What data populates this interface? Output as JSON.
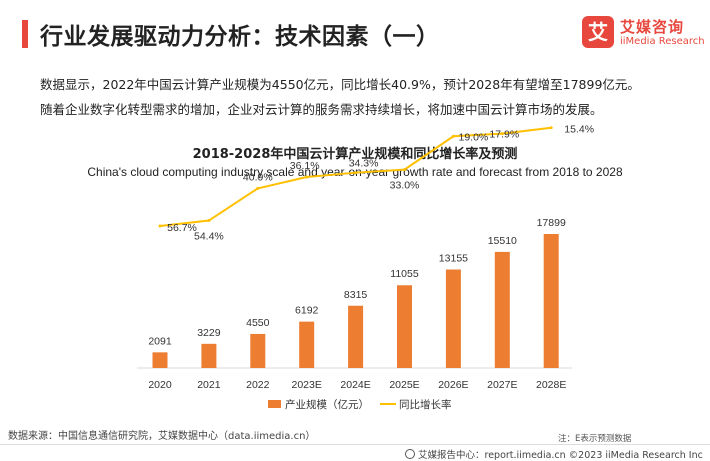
{
  "header": {
    "title": "行业发展驱动力分析：技术因素（一）",
    "logo_mark": "艾",
    "logo_cn": "艾媒咨询",
    "logo_en": "iiMedia Research"
  },
  "summary": [
    "数据显示，2022年中国云计算产业规模为4550亿元，同比增长40.9%，预计2028年有望增至17899亿元。",
    "随着企业数字化转型需求的增加，企业对云计算的服务需求持续增长，将加速中国云计算市场的发展。"
  ],
  "chart_data": {
    "type": "bar",
    "title": "2018-2028年中国云计算产业规模和同比增长率及预测",
    "subtitle": "China's cloud computing industry scale and year-on-year growth rate and forecast from 2018 to 2028",
    "categories": [
      "2020",
      "2021",
      "2022",
      "2023E",
      "2024E",
      "2025E",
      "2026E",
      "2027E",
      "2028E"
    ],
    "series": [
      {
        "name": "产业规模（亿元）",
        "type": "bar",
        "color": "#ed7d31",
        "values": [
          2091,
          3229,
          4550,
          6192,
          8315,
          11055,
          13155,
          15510,
          17899
        ],
        "labels": [
          "2091",
          "3229",
          "4550",
          "6192",
          "8315",
          "11055",
          "13155",
          "15510",
          "17899"
        ]
      },
      {
        "name": "同比增长率",
        "type": "line",
        "color": "#ffc000",
        "values": [
          56.7,
          54.4,
          40.9,
          36.1,
          34.3,
          33.0,
          19.0,
          17.9,
          15.4
        ],
        "labels": [
          "56.7%",
          "54.4%",
          "40.9%",
          "36.1%",
          "34.3%",
          "33.0%",
          "19.0%",
          "17.9%",
          "15.4%"
        ]
      }
    ],
    "legend_position": "bottom",
    "grid": false
  },
  "footer": {
    "source": "数据来源：中国信息通信研究院，艾媒数据中心（data.iimedia.cn）",
    "note": "注：E表示预测数据",
    "copyright": "艾媒报告中心：report.iimedia.cn  ©2023  iiMedia Research  Inc"
  }
}
